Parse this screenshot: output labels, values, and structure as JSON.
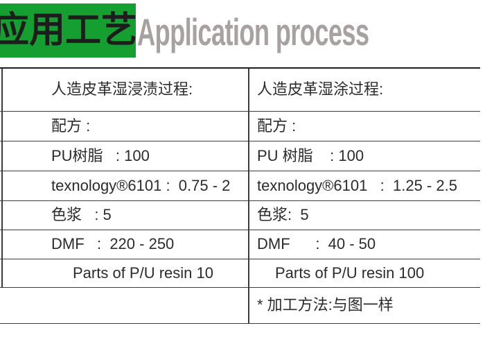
{
  "header": {
    "zh_title": "应用工艺",
    "en_title": "Application process",
    "green_color": "#149f30",
    "en_title_color": "#a8a1a1"
  },
  "table": {
    "rows": [
      {
        "left": "人造皮革湿浸渍过程:",
        "right": "人造皮革湿涂过程:"
      },
      {
        "left": "配方 :",
        "right": "配方 :"
      },
      {
        "left": "PU树脂   : 100",
        "right": "PU 树脂    : 100"
      },
      {
        "left": "texnology®6101 :  0.75 - 2",
        "right": "texnology®6101   :  1.25 - 2.5"
      },
      {
        "left": "色浆   : 5",
        "right": "色浆:  5"
      },
      {
        "left": "DMF   :  220 - 250",
        "right": "DMF      :  40 - 50"
      },
      {
        "left": "Parts of P/U resin 10",
        "right": "Parts of P/U resin 100"
      },
      {
        "left": "",
        "right": "* 加工方法:与图一样"
      }
    ]
  }
}
